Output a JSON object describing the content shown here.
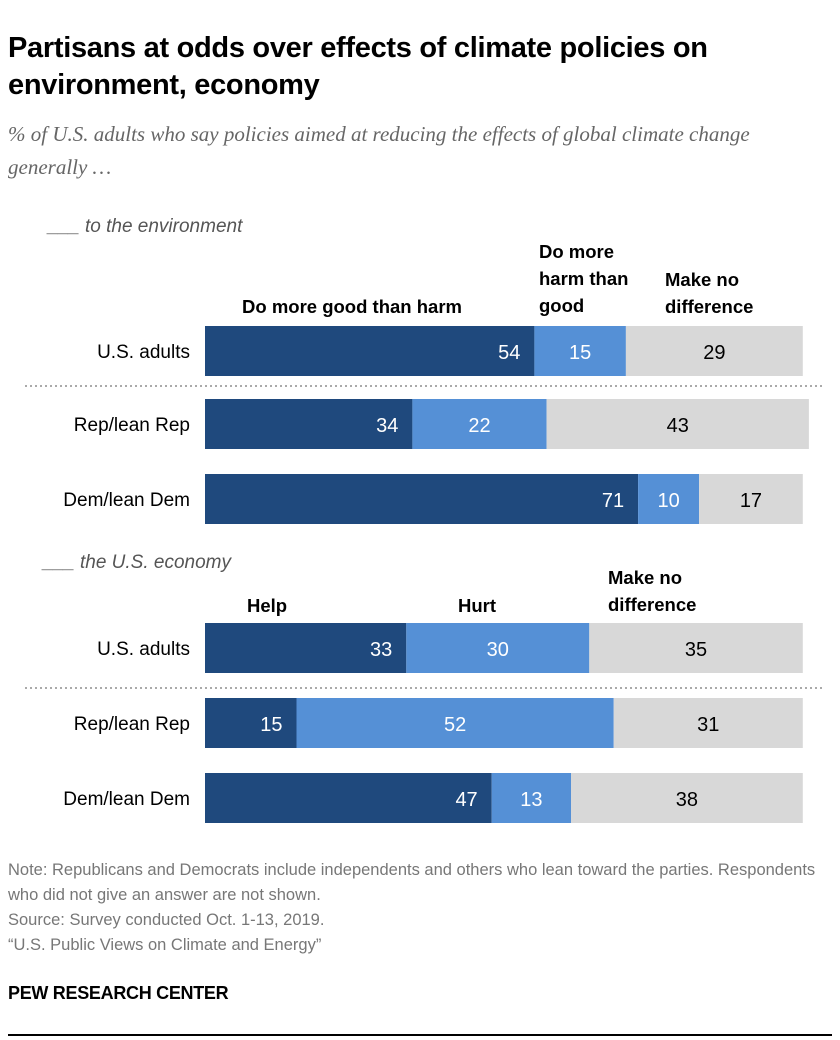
{
  "title": "Partisans at odds over effects of climate policies on environment, economy",
  "subtitle": "% of U.S. adults who say policies aimed at reducing the effects of global climate change generally …",
  "colors": {
    "dark": "#1f497d",
    "light": "#5590d6",
    "gray": "#d8d8d8"
  },
  "chart_data": [
    {
      "type": "bar",
      "orientation": "horizontal-stacked",
      "title": "___ to the environment",
      "categories": [
        "U.S. adults",
        "Rep/lean Rep",
        "Dem/lean Dem"
      ],
      "series": [
        {
          "name": "Do more good than harm",
          "values": [
            54,
            34,
            71
          ]
        },
        {
          "name": "Do more harm than good",
          "values": [
            15,
            22,
            10
          ]
        },
        {
          "name": "Make no difference",
          "values": [
            29,
            43,
            17
          ]
        }
      ]
    },
    {
      "type": "bar",
      "orientation": "horizontal-stacked",
      "title": "___ the U.S. economy",
      "categories": [
        "U.S. adults",
        "Rep/lean Rep",
        "Dem/lean Dem"
      ],
      "series": [
        {
          "name": "Help",
          "values": [
            33,
            15,
            47
          ]
        },
        {
          "name": "Hurt",
          "values": [
            30,
            52,
            13
          ]
        },
        {
          "name": "Make no difference",
          "values": [
            35,
            31,
            38
          ]
        }
      ]
    }
  ],
  "footer": {
    "note": "Note: Republicans and Democrats include independents and others who lean toward the parties. Respondents who did not give an answer are not shown.",
    "source": "Source: Survey conducted Oct. 1-13, 2019.",
    "report": "“U.S. Public Views on Climate and Energy”",
    "brand": "PEW RESEARCH CENTER"
  }
}
